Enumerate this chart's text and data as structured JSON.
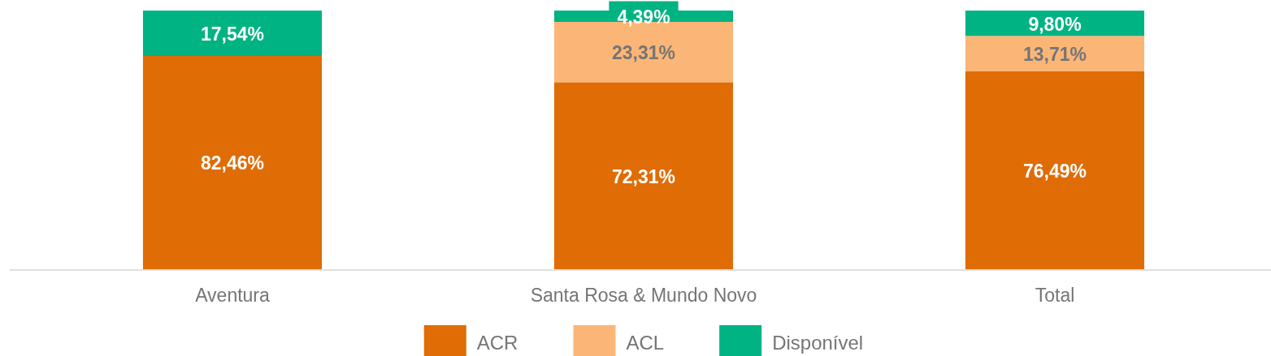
{
  "chart_data": {
    "type": "bar",
    "stacked": true,
    "categories": [
      "Aventura",
      "Santa Rosa & Mundo Novo",
      "Total"
    ],
    "series": [
      {
        "name": "ACR",
        "color": "#e06c05",
        "values": [
          82.46,
          72.31,
          76.49
        ],
        "value_labels": [
          "82,46%",
          "72,31%",
          "76,49%"
        ]
      },
      {
        "name": "ACL",
        "color": "#fbb677",
        "values": [
          0,
          23.31,
          13.71
        ],
        "value_labels": [
          null,
          "23,31%",
          "13,71%"
        ]
      },
      {
        "name": "Disponível",
        "color": "#00b383",
        "values": [
          17.54,
          4.39,
          9.8
        ],
        "value_labels": [
          "17,54%",
          "4,39%",
          "9,80%"
        ]
      }
    ],
    "legend": "bottom"
  }
}
